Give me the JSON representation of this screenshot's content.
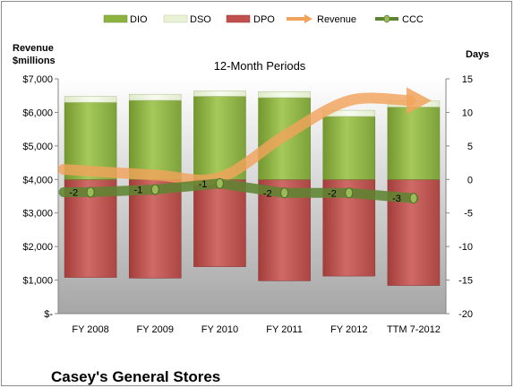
{
  "chart_data": {
    "type": "bar",
    "title": "12-Month Periods",
    "footer_title": "Casey's General Stores",
    "categories": [
      "FY 2008",
      "FY 2009",
      "FY 2010",
      "FY 2011",
      "FY 2012",
      "TTM 7-2012"
    ],
    "left_axis": {
      "label_line1": "Revenue",
      "label_line2": "$millions",
      "ylim": [
        0,
        7000
      ],
      "ticks": [
        0,
        1000,
        2000,
        3000,
        4000,
        5000,
        6000,
        7000
      ],
      "tick_labels": [
        "$-",
        "$1,000",
        "$2,000",
        "$3,000",
        "$4,000",
        "$5,000",
        "$6,000",
        "$7,000"
      ]
    },
    "right_axis": {
      "label": "Days",
      "ylim": [
        -20,
        15
      ],
      "ticks": [
        -20,
        -15,
        -10,
        -5,
        0,
        5,
        10,
        15
      ],
      "tick_labels": [
        "-20",
        "-15",
        "-10",
        "-5",
        "0",
        "5",
        "10",
        "15"
      ]
    },
    "series": [
      {
        "name": "DIO",
        "axis": "right",
        "kind": "bar-positive",
        "values": [
          11.5,
          11.8,
          12.4,
          12.2,
          9.4,
          10.8
        ]
      },
      {
        "name": "DSO",
        "axis": "right",
        "kind": "bar-positive-stacked",
        "values": [
          0.9,
          0.9,
          0.8,
          0.9,
          0.9,
          0.9
        ]
      },
      {
        "name": "DPO",
        "axis": "right",
        "kind": "bar-negative",
        "values": [
          -14.6,
          -14.7,
          -13.0,
          -15.1,
          -14.4,
          -15.8
        ]
      },
      {
        "name": "Revenue",
        "axis": "left",
        "kind": "line-arrow",
        "values": [
          4300,
          4130,
          4060,
          5300,
          6350,
          6350
        ]
      },
      {
        "name": "CCC",
        "axis": "right",
        "kind": "line-markers",
        "values": [
          -1.9,
          -1.5,
          -0.6,
          -2.0,
          -2.0,
          -2.8
        ],
        "labels": [
          "-2",
          "-1",
          "-1",
          "-2",
          "-2",
          "-3"
        ]
      }
    ],
    "legend": {
      "placement": "top",
      "entries": [
        "DIO",
        "DSO",
        "DPO",
        "Revenue",
        "CCC"
      ]
    },
    "grid": false,
    "colors": {
      "dio": "#8db33f",
      "dio_light": "#c8e08c",
      "dso": "#eaf2d6",
      "dpo": "#c0504d",
      "dpo_light": "#d98a88",
      "revenue": "#f1a35b",
      "ccc": "#5e8431",
      "ccc_marker": "#9bbb59",
      "plot_top": "#ffffff",
      "plot_bottom": "#a6a6a6"
    }
  }
}
